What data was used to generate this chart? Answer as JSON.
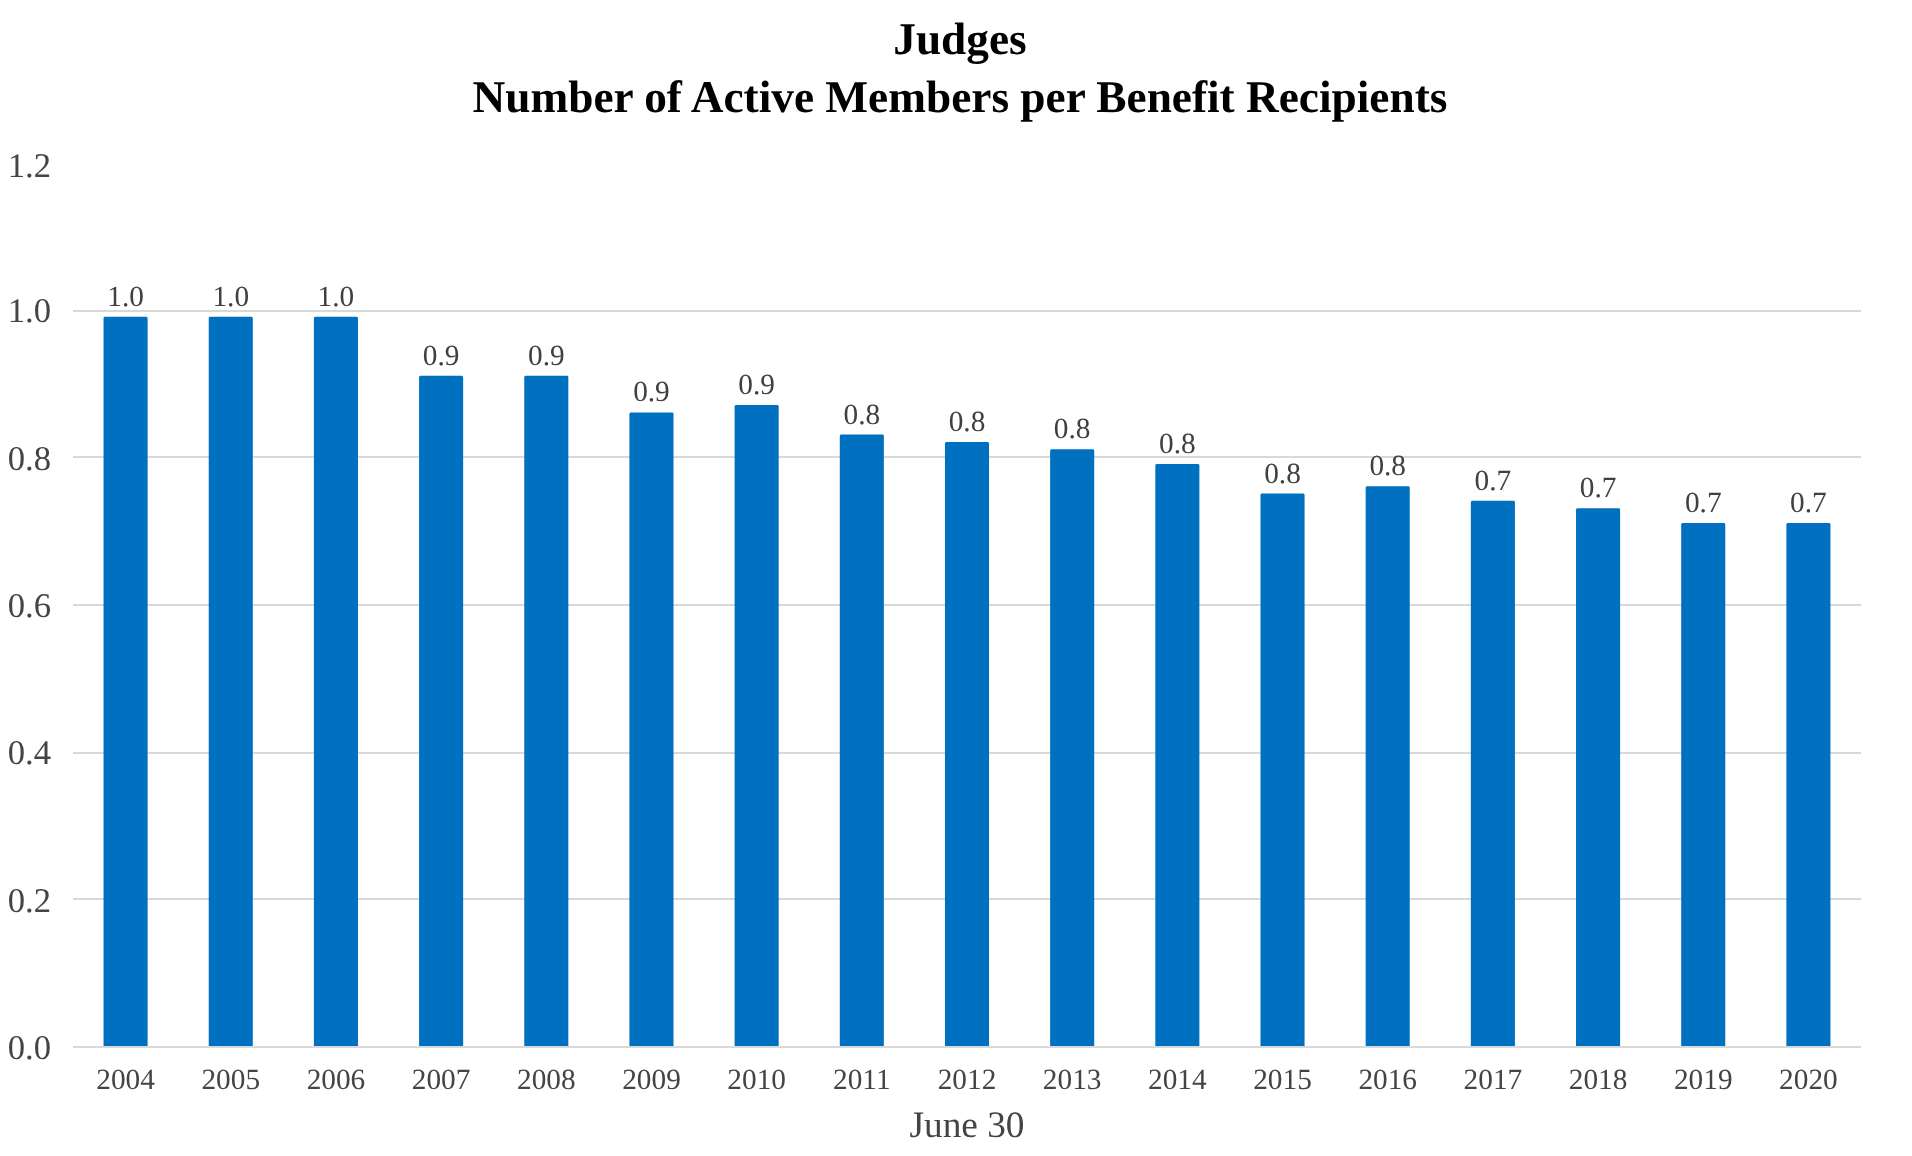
{
  "chart_data": {
    "type": "bar",
    "title": "Judges\nNumber of Active Members per Benefit Recipients",
    "xlabel": "June 30",
    "categories": [
      "2004",
      "2005",
      "2006",
      "2007",
      "2008",
      "2009",
      "2010",
      "2011",
      "2012",
      "2013",
      "2014",
      "2015",
      "2016",
      "2017",
      "2018",
      "2019",
      "2020"
    ],
    "values": [
      0.99,
      0.99,
      0.99,
      0.91,
      0.91,
      0.86,
      0.87,
      0.83,
      0.82,
      0.81,
      0.79,
      0.75,
      0.76,
      0.74,
      0.73,
      0.71,
      0.71
    ],
    "value_labels": [
      "1.0",
      "1.0",
      "1.0",
      "0.9",
      "0.9",
      "0.9",
      "0.9",
      "0.8",
      "0.8",
      "0.8",
      "0.8",
      "0.8",
      "0.8",
      "0.7",
      "0.7",
      "0.7",
      "0.7"
    ],
    "color": "#0070c0",
    "ylim": [
      0,
      1.2
    ],
    "yticks": [
      {
        "value": 0,
        "label": "0.0"
      },
      {
        "value": 0.2,
        "label": "0.2"
      },
      {
        "value": 0.4,
        "label": "0.4"
      },
      {
        "value": 0.6,
        "label": "0.6"
      },
      {
        "value": 0.8,
        "label": "0.8"
      },
      {
        "value": 1.0,
        "label": "1.0"
      },
      {
        "value": 1.2,
        "label": "1.2"
      }
    ],
    "grid": "y"
  }
}
